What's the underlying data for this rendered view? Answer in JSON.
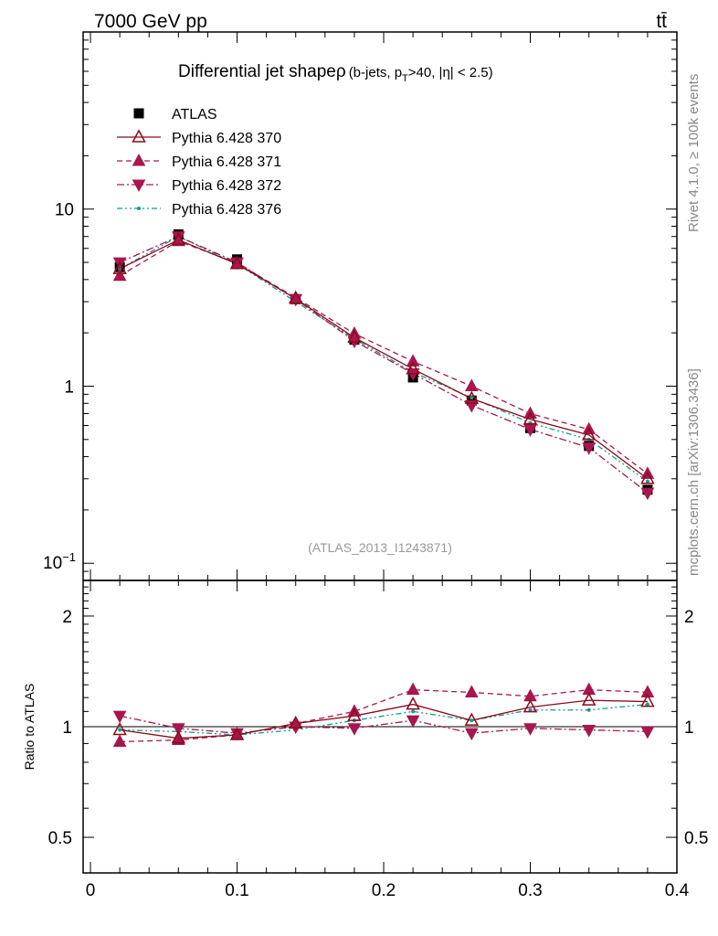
{
  "header": {
    "energy_label": "7000 GeV pp",
    "process_label": "tt̄"
  },
  "side_labels": {
    "rivet": "Rivet 4.1.0, ≥ 100k events",
    "mcplots": "mcplots.cern.ch [arXiv:1306.3436]"
  },
  "chart_data": {
    "type": "line",
    "title": "Differential jet shape",
    "title_symbol": "ρ",
    "title_cut_open": "(b-jets, p",
    "title_cut_sub": "T",
    "title_cut_close": ">40, |η| < 2.5)",
    "analysis_id": "(ATLAS_2013_I1243871)",
    "x": [
      0.02,
      0.06,
      0.1,
      0.14,
      0.18,
      0.22,
      0.26,
      0.3,
      0.34,
      0.38
    ],
    "xlim": [
      -0.005,
      0.4
    ],
    "x_ticks": [
      0,
      0.1,
      0.2,
      0.3,
      0.4
    ],
    "x_tick_labels": [
      "0",
      "0.1",
      "0.2",
      "0.3",
      "0.4"
    ],
    "main_panel": {
      "yscale": "log",
      "ylim": [
        0.08,
        100
      ],
      "y_ticks": [
        0.1,
        1,
        10
      ],
      "y_tick_label_base": "10",
      "y_tick_label_exp": "−1",
      "y_tick_labels": [
        "1",
        "10"
      ]
    },
    "ratio_panel": {
      "ylabel": "Ratio to ATLAS",
      "yscale": "log",
      "ylim": [
        0.4,
        2.5
      ],
      "y_ticks": [
        0.5,
        1,
        2
      ],
      "y_tick_labels": [
        "0.5",
        "1",
        "2"
      ]
    },
    "series": [
      {
        "name": "ATLAS",
        "color": "#000000",
        "marker": "square",
        "line": "none",
        "values": [
          4.7,
          7.2,
          5.2,
          3.1,
          1.83,
          1.12,
          0.83,
          0.58,
          0.46,
          0.26
        ],
        "ratio": [
          1,
          1,
          1,
          1,
          1,
          1,
          1,
          1,
          1,
          1
        ]
      },
      {
        "name": "Pythia 6.428 370",
        "color": "#8b0a1a",
        "marker": "triangle-up-open",
        "line": "solid",
        "values": [
          4.6,
          6.7,
          4.9,
          3.12,
          1.88,
          1.25,
          0.85,
          0.65,
          0.53,
          0.3
        ],
        "ratio": [
          0.98,
          0.93,
          0.95,
          1.02,
          1.07,
          1.15,
          1.04,
          1.13,
          1.18,
          1.17
        ]
      },
      {
        "name": "Pythia 6.428 371",
        "color": "#a8164f",
        "marker": "triangle-up",
        "line": "dashed",
        "values": [
          4.2,
          6.6,
          4.95,
          3.16,
          1.98,
          1.38,
          1.0,
          0.7,
          0.57,
          0.32
        ],
        "ratio": [
          0.91,
          0.92,
          0.95,
          1.02,
          1.1,
          1.26,
          1.24,
          1.21,
          1.26,
          1.24
        ]
      },
      {
        "name": "Pythia 6.428 372",
        "color": "#a8164f",
        "marker": "triangle-down",
        "line": "dash-dot",
        "values": [
          5.0,
          7.0,
          5.0,
          3.1,
          1.8,
          1.18,
          0.78,
          0.57,
          0.45,
          0.25
        ],
        "ratio": [
          1.07,
          0.99,
          0.96,
          1.0,
          0.99,
          1.04,
          0.96,
          0.99,
          0.98,
          0.97
        ]
      },
      {
        "name": "Pythia 6.428 376",
        "color": "#0f9b8e",
        "marker": "dot",
        "line": "dash-dot-dot",
        "values": [
          4.6,
          7.0,
          4.9,
          3.0,
          1.85,
          1.2,
          0.86,
          0.62,
          0.5,
          0.29
        ],
        "ratio": [
          0.98,
          0.97,
          0.95,
          0.98,
          1.04,
          1.1,
          1.04,
          1.11,
          1.11,
          1.15
        ]
      }
    ],
    "legend_position": "top-left"
  }
}
